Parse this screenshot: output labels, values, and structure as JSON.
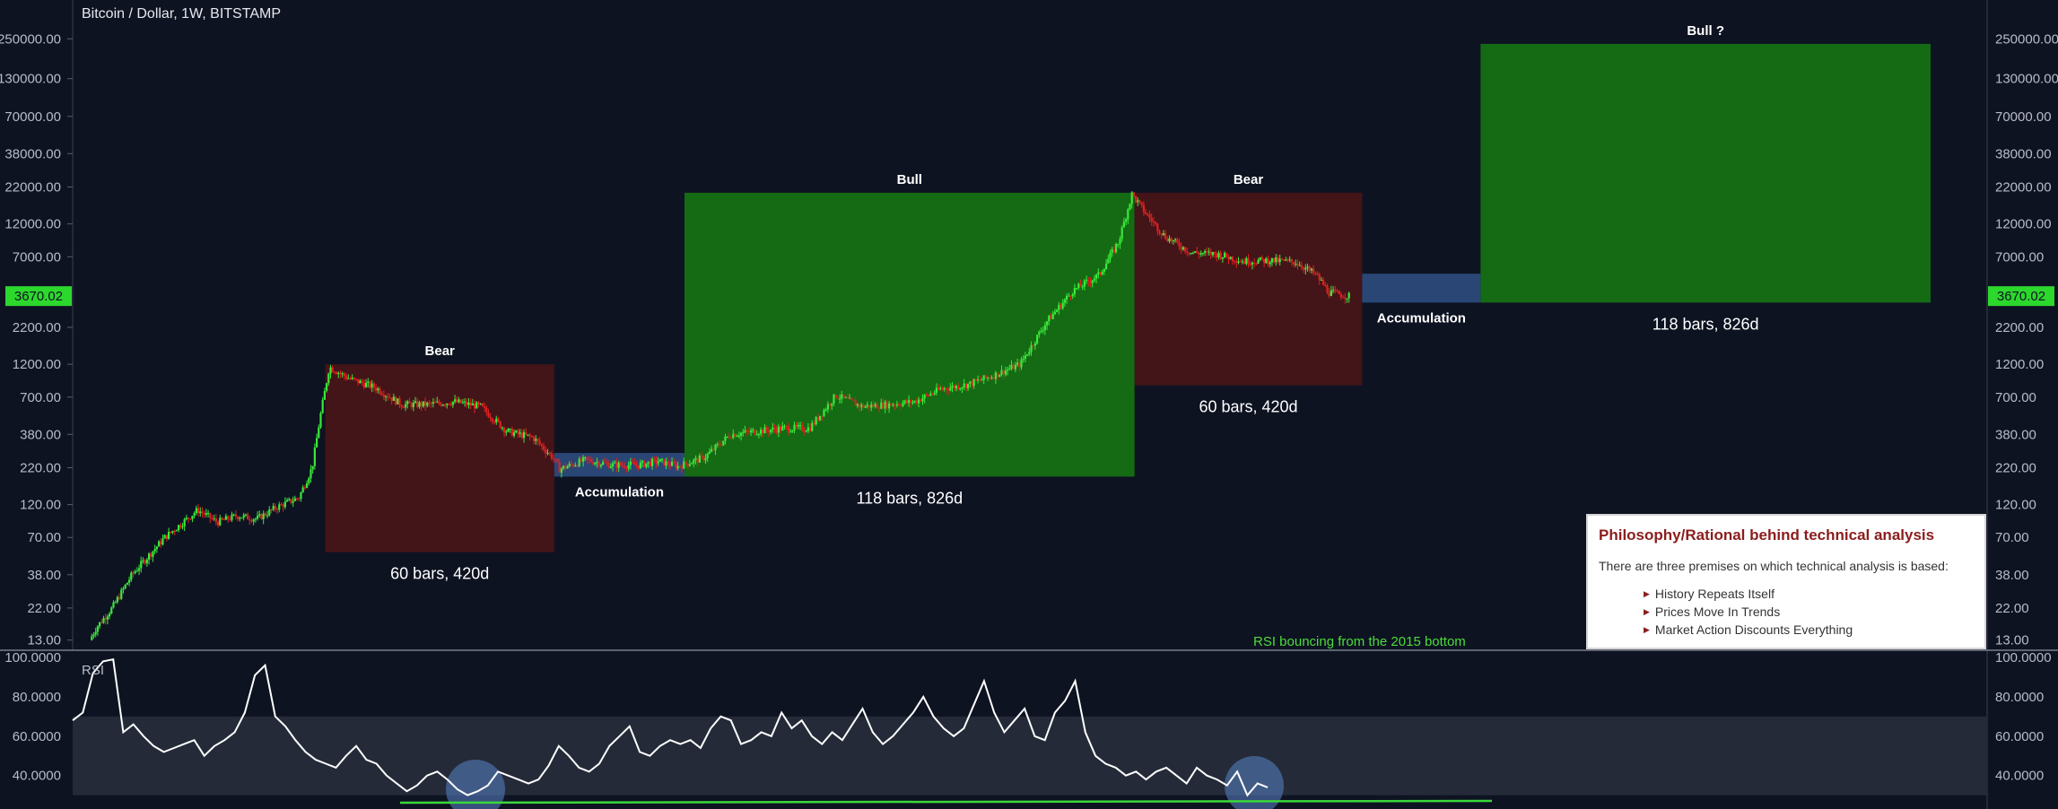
{
  "header": {
    "title": "Bitcoin / Dollar, 1W, BITSTAMP"
  },
  "colors": {
    "background": "#0e1322",
    "bull_box": "#146b14",
    "bear_box": "#431418",
    "accumulation_box": "#2c4c7e",
    "price_tag": "#2dd82d",
    "candle_up": "#3ae83a",
    "candle_down": "#e02020",
    "rsi_line": "#ffffff",
    "rsi_band": "#242a38",
    "support_line": "#3ad83a",
    "rsi_note": "#4ddc3a",
    "info_heading": "#8b1d1d"
  },
  "chart_data": [
    {
      "type": "candlestick",
      "title": "Bitcoin / Dollar, 1W, BITSTAMP",
      "scale": "log",
      "y_tick_labels": [
        "250000.00",
        "130000.00",
        "70000.00",
        "38000.00",
        "22000.00",
        "12000.00",
        "7000.00",
        "2200.00",
        "1200.00",
        "700.00",
        "380.00",
        "220.00",
        "120.00",
        "70.00",
        "38.00",
        "22.00",
        "13.00"
      ],
      "y_ticks": [
        250000,
        130000,
        70000,
        38000,
        22000,
        12000,
        7000,
        2200,
        1200,
        700,
        380,
        220,
        120,
        70,
        38,
        22,
        13
      ],
      "ylim": [
        11.5,
        420000
      ],
      "current_price_label": "3670.02",
      "current_price": 3670.02,
      "price_path": [
        [
          13,
          13
        ],
        [
          18,
          16
        ],
        [
          30,
          22
        ],
        [
          45,
          38
        ],
        [
          70,
          70
        ],
        [
          95,
          110
        ],
        [
          110,
          90
        ],
        [
          125,
          100
        ],
        [
          140,
          95
        ],
        [
          155,
          115
        ],
        [
          172,
          135
        ],
        [
          182,
          220
        ],
        [
          188,
          500
        ],
        [
          195,
          1150
        ],
        [
          210,
          950
        ],
        [
          230,
          820
        ],
        [
          250,
          620
        ],
        [
          270,
          620
        ],
        [
          290,
          650
        ],
        [
          310,
          600
        ],
        [
          330,
          400
        ],
        [
          350,
          360
        ],
        [
          365,
          260
        ],
        [
          370,
          215
        ],
        [
          390,
          250
        ],
        [
          410,
          230
        ],
        [
          430,
          230
        ],
        [
          445,
          245
        ],
        [
          460,
          225
        ],
        [
          480,
          260
        ],
        [
          500,
          380
        ],
        [
          520,
          400
        ],
        [
          540,
          420
        ],
        [
          560,
          420
        ],
        [
          580,
          720
        ],
        [
          600,
          600
        ],
        [
          620,
          620
        ],
        [
          640,
          650
        ],
        [
          660,
          800
        ],
        [
          680,
          860
        ],
        [
          700,
          1000
        ],
        [
          720,
          1200
        ],
        [
          740,
          2400
        ],
        [
          760,
          4000
        ],
        [
          780,
          5200
        ],
        [
          795,
          9000
        ],
        [
          805,
          19500
        ],
        [
          815,
          14500
        ],
        [
          830,
          9800
        ],
        [
          850,
          7500
        ],
        [
          870,
          7300
        ],
        [
          890,
          6500
        ],
        [
          910,
          6600
        ],
        [
          930,
          6400
        ],
        [
          945,
          5200
        ],
        [
          955,
          3900
        ],
        [
          970,
          3670
        ]
      ],
      "boxes": [
        {
          "label": "Bear",
          "bars_label": "60 bars, 420d",
          "x_start": 192,
          "x_end": 366,
          "y_top": 1200,
          "y_bottom": 55,
          "kind": "bear"
        },
        {
          "label": "Accumulation",
          "bars_label": "",
          "x_start": 366,
          "x_end": 465,
          "y_top": 280,
          "y_bottom": 190,
          "kind": "accumulation"
        },
        {
          "label": "Bull",
          "bars_label": "118 bars, 826d",
          "x_start": 465,
          "x_end": 807,
          "y_top": 20000,
          "y_bottom": 190,
          "kind": "bull"
        },
        {
          "label": "Bear",
          "bars_label": "60 bars, 420d",
          "x_start": 807,
          "x_end": 980,
          "y_top": 20000,
          "y_bottom": 850,
          "kind": "bear"
        },
        {
          "label": "Accumulation",
          "bars_label": "",
          "x_start": 980,
          "x_end": 1070,
          "y_top": 5300,
          "y_bottom": 3300,
          "kind": "accumulation"
        },
        {
          "label": "Bull ?",
          "bars_label": "118 bars, 826d",
          "x_start": 1070,
          "x_end": 1412,
          "y_top": 230000,
          "y_bottom": 3300,
          "kind": "bull"
        }
      ]
    },
    {
      "type": "line",
      "series_label": "RSI",
      "ylim": [
        23,
        100
      ],
      "y_tick_labels": [
        "100.0000",
        "80.0000",
        "60.0000",
        "40.0000"
      ],
      "y_ticks": [
        100,
        80,
        60,
        40
      ],
      "band": [
        30,
        70
      ],
      "x_range": [
        55,
        970
      ],
      "values": [
        68,
        72,
        92,
        98,
        99,
        62,
        66,
        60,
        55,
        52,
        54,
        56,
        58,
        50,
        55,
        58,
        62,
        72,
        91,
        96,
        70,
        65,
        58,
        52,
        48,
        46,
        44,
        50,
        55,
        48,
        46,
        40,
        36,
        32,
        35,
        40,
        42,
        38,
        33,
        30,
        32,
        35,
        42,
        40,
        38,
        36,
        38,
        45,
        55,
        50,
        44,
        42,
        46,
        55,
        60,
        65,
        52,
        50,
        55,
        58,
        56,
        58,
        54,
        64,
        70,
        68,
        56,
        58,
        62,
        60,
        72,
        64,
        68,
        60,
        56,
        62,
        58,
        66,
        74,
        62,
        56,
        60,
        66,
        72,
        80,
        70,
        64,
        60,
        64,
        76,
        88,
        72,
        62,
        68,
        74,
        60,
        58,
        72,
        78,
        88,
        62,
        50,
        46,
        44,
        40,
        42,
        38,
        42,
        44,
        40,
        36,
        44,
        40,
        38,
        35,
        42,
        30,
        36,
        34
      ]
    }
  ],
  "rsi_note": "RSI bouncing from the 2015 bottom",
  "info_box": {
    "heading": "Philosophy/Rational behind technical analysis",
    "intro": "There are three premises on which technical analysis is based:",
    "items": [
      "History Repeats Itself",
      "Prices Move In Trends",
      "Market Action Discounts Everything"
    ]
  }
}
